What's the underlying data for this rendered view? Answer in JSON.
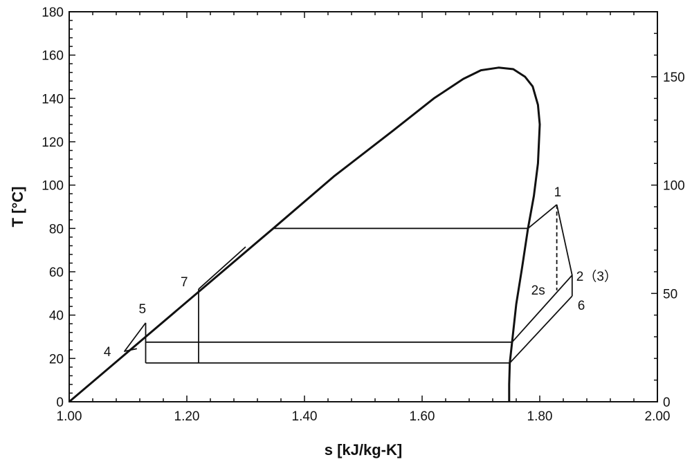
{
  "chart_data": {
    "type": "line",
    "title": "",
    "xlabel": "s [kJ/kg-K]",
    "ylabel": "T [°C]",
    "xlim": [
      1.0,
      2.0
    ],
    "ylim": [
      0,
      180
    ],
    "y2lim": [
      0,
      180
    ],
    "xticks": [
      "1.00",
      "1.20",
      "1.40",
      "1.60",
      "1.80",
      "2.00"
    ],
    "yticks": [
      "0",
      "20",
      "40",
      "60",
      "80",
      "100",
      "120",
      "140",
      "160",
      "180"
    ],
    "y2ticks": [
      "0",
      "50",
      "100",
      "150"
    ],
    "grid": false,
    "line_color": "#111111",
    "series": [
      {
        "id": "saturation-dome",
        "style": "thick",
        "points": [
          [
            1.0,
            0
          ],
          [
            1.347,
            80
          ],
          [
            1.45,
            104
          ],
          [
            1.55,
            125
          ],
          [
            1.62,
            140
          ],
          [
            1.67,
            149
          ],
          [
            1.7,
            153
          ],
          [
            1.73,
            154.2
          ],
          [
            1.755,
            153.5
          ],
          [
            1.775,
            150
          ],
          [
            1.788,
            145.5
          ],
          [
            1.797,
            137
          ],
          [
            1.8,
            128
          ],
          [
            1.797,
            110
          ],
          [
            1.79,
            95
          ],
          [
            1.78,
            80
          ],
          [
            1.77,
            62
          ],
          [
            1.76,
            45
          ],
          [
            1.753,
            27.5
          ],
          [
            1.749,
            17.9
          ],
          [
            1.748,
            8
          ],
          [
            1.748,
            0
          ]
        ]
      },
      {
        "id": "evaporation-80",
        "style": "thin",
        "points": [
          [
            1.347,
            80
          ],
          [
            1.78,
            80
          ]
        ]
      },
      {
        "id": "superheat-to-1",
        "style": "thin",
        "points": [
          [
            1.78,
            80
          ],
          [
            1.829,
            91
          ]
        ]
      },
      {
        "id": "expansion-1-2",
        "style": "thin",
        "points": [
          [
            1.829,
            91
          ],
          [
            1.855,
            58.4
          ],
          [
            1.855,
            48.8
          ]
        ]
      },
      {
        "id": "isentropic-1-2s",
        "style": "dashed",
        "points": [
          [
            1.829,
            91
          ],
          [
            1.829,
            51.4
          ]
        ]
      },
      {
        "id": "cooling-2",
        "style": "thin",
        "points": [
          [
            1.855,
            58.4
          ],
          [
            1.753,
            27.5
          ]
        ]
      },
      {
        "id": "cooling-6",
        "style": "thin",
        "points": [
          [
            1.855,
            48.8
          ],
          [
            1.749,
            17.9
          ]
        ]
      },
      {
        "id": "condensation-upper",
        "style": "thin",
        "points": [
          [
            1.13,
            27.5
          ],
          [
            1.753,
            27.5
          ]
        ]
      },
      {
        "id": "condensation-lower",
        "style": "thin",
        "points": [
          [
            1.13,
            17.9
          ],
          [
            1.749,
            17.9
          ]
        ]
      },
      {
        "id": "vertical-1.13",
        "style": "thin",
        "points": [
          [
            1.13,
            17.9
          ],
          [
            1.13,
            36.4
          ]
        ]
      },
      {
        "id": "pump-4-5",
        "style": "thin",
        "points": [
          [
            1.13,
            36.4
          ],
          [
            1.094,
            23.3
          ],
          [
            1.115,
            24.5
          ]
        ]
      },
      {
        "id": "vertical-7",
        "style": "thin",
        "points": [
          [
            1.22,
            17.9
          ],
          [
            1.22,
            52
          ]
        ]
      },
      {
        "id": "heating-7",
        "style": "thin",
        "points": [
          [
            1.22,
            52
          ],
          [
            1.3,
            71.5
          ]
        ]
      }
    ],
    "state_labels": [
      {
        "label": "1",
        "s": 1.829,
        "T": 91,
        "dx": -4,
        "dy": -12
      },
      {
        "label": "2（3）",
        "s": 1.855,
        "T": 58.4,
        "dx": 6,
        "dy": 8
      },
      {
        "label": "2s",
        "s": 1.829,
        "T": 51.4,
        "dx": -37,
        "dy": 6
      },
      {
        "label": "6",
        "s": 1.855,
        "T": 48.8,
        "dx": 8,
        "dy": 20
      },
      {
        "label": "4",
        "s": 1.094,
        "T": 23.3,
        "dx": -30,
        "dy": 7
      },
      {
        "label": "5",
        "s": 1.13,
        "T": 36.4,
        "dx": -10,
        "dy": -14
      },
      {
        "label": "7",
        "s": 1.22,
        "T": 52,
        "dx": -26,
        "dy": -4
      }
    ]
  }
}
